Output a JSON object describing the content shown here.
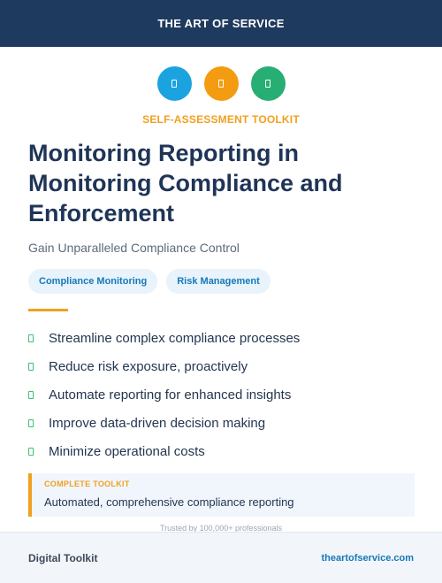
{
  "header": {
    "brand": "THE ART OF SERVICE"
  },
  "icons": [
    {
      "name": "blue-badge-icon",
      "color": "#1ba3e0"
    },
    {
      "name": "orange-badge-icon",
      "color": "#f39c12"
    },
    {
      "name": "green-badge-icon",
      "color": "#27ae74"
    }
  ],
  "kicker": "SELF-ASSESSMENT TOOLKIT",
  "title": "Monitoring Reporting in Monitoring Compliance and Enforcement",
  "subtitle": "Gain Unparalleled Compliance Control",
  "tags": [
    "Compliance Monitoring",
    "Risk Management"
  ],
  "benefits": [
    "Streamline complex compliance processes",
    "Reduce risk exposure, proactively",
    "Automate reporting for enhanced insights",
    "Improve data-driven decision making",
    "Minimize operational costs"
  ],
  "callout": {
    "label": "COMPLETE TOOLKIT",
    "text": "Automated, comprehensive compliance reporting"
  },
  "trusted": "Trusted by 100,000+ professionals",
  "footer": {
    "left": "Digital Toolkit",
    "right": "theartofservice.com"
  }
}
